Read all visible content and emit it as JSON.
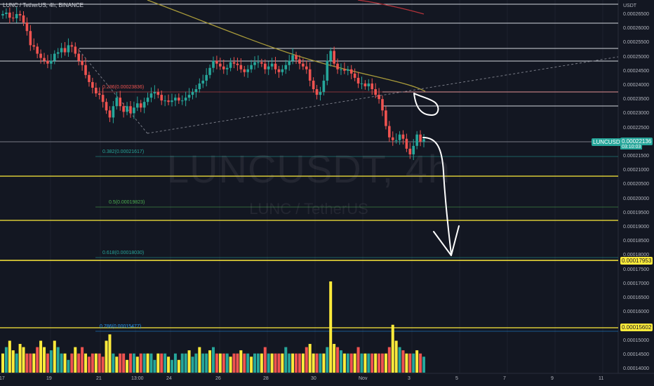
{
  "header": {
    "symbol_line": "LUNC / TetherUS, 4h, BINANCE"
  },
  "watermark": {
    "ticker": "LUNCUSDT, 4h",
    "pair": "LUNC / TetherUS"
  },
  "axis": {
    "currency": "USDT",
    "y_ticks": [
      "0.00026500",
      "0.00026000",
      "0.00025500",
      "0.00025000",
      "0.00024500",
      "0.00024000",
      "0.00023500",
      "0.00023000",
      "0.00022500",
      "0.00022000",
      "0.00021500",
      "0.00021000",
      "0.00020500",
      "0.00020000",
      "0.00019500",
      "0.00019000",
      "0.00018500",
      "0.00018000",
      "0.00017500",
      "0.00017000",
      "0.00016500",
      "0.00016000",
      "0.00015500",
      "0.00015000",
      "0.00014500",
      "0.00014000"
    ],
    "x_ticks": [
      "17",
      "19",
      "21",
      "13:00",
      "24",
      "26",
      "28",
      "30",
      "Nov",
      "3",
      "5",
      "7",
      "9",
      "11"
    ]
  },
  "tags": {
    "ticker": "LUNCUSDT",
    "last_price": "0.00022136",
    "countdown": "03:10:03",
    "level_1": "0.00017953",
    "level_2": "0.00015602"
  },
  "fib_labels": {
    "f236": "0.236(0.00023836)",
    "f382": "0.382(0.00021617)",
    "f50": "0.5(0.00019823)",
    "f618": "0.618(0.00018030)",
    "f786": "0.786(0.00015477)"
  },
  "colors": {
    "background": "#131722",
    "bull": "#26a69a",
    "bear": "#ef5350",
    "volume_yellow": "#ffeb3b",
    "ma_olive": "#a89a3a",
    "ma_red": "#b2333a",
    "hline": "#d1d4dc"
  },
  "chart_data": {
    "type": "candlestick",
    "symbol": "LUNCUSDT",
    "interval": "4h",
    "exchange": "BINANCE",
    "x_labels": [
      "17",
      "19",
      "21",
      "13:00",
      "24",
      "26",
      "28",
      "30",
      "Nov",
      "3",
      "5",
      "7",
      "9",
      "11"
    ],
    "ylim": [
      0.00014,
      0.000267
    ],
    "last_price": 0.00022136,
    "closes_approx": [
      0.0002655,
      0.000266,
      0.0002642,
      0.000264,
      0.0002655,
      0.000265,
      0.0002625,
      0.0002595,
      0.0002545,
      0.000254,
      0.0002515,
      0.00025,
      0.000249,
      0.000248,
      0.000249,
      0.0002515,
      0.000252,
      0.0002535,
      0.000252,
      0.0002545,
      0.000254,
      0.0002515,
      0.000249,
      0.0002475,
      0.000244,
      0.0002415,
      0.0002395,
      0.0002375,
      0.000237,
      0.0002345,
      0.0002315,
      0.000229,
      0.000233,
      0.000236,
      0.000233,
      0.000231,
      0.000233,
      0.0002305,
      0.0002325,
      0.000234,
      0.0002325,
      0.0002345,
      0.000236,
      0.0002375,
      0.000238,
      0.000237,
      0.000235,
      0.000235,
      0.0002345,
      0.000235,
      0.000236,
      0.000235,
      0.000235,
      0.000236,
      0.000237,
      0.000238,
      0.000239,
      0.000241,
      0.000242,
      0.000244,
      0.0002465,
      0.000249,
      0.000248,
      0.000247,
      0.000246,
      0.0002465,
      0.0002485,
      0.000248,
      0.0002475,
      0.000246,
      0.000245,
      0.000246,
      0.0002475,
      0.0002485,
      0.0002485,
      0.000248,
      0.000246,
      0.000247,
      0.000248,
      0.000246,
      0.000245,
      0.000246,
      0.0002475,
      0.000249,
      0.000251,
      0.0002495,
      0.000248,
      0.000247,
      0.000246,
      0.000242,
      0.000239,
      0.000237,
      0.000238,
      0.000242,
      0.000249,
      0.0002525,
      0.000248,
      0.000246,
      0.000246,
      0.0002455,
      0.000246,
      0.0002445,
      0.000243,
      0.000241,
      0.000241,
      0.00024,
      0.000241,
      0.000239,
      0.000237,
      0.0002355,
      0.0002315,
      0.000226,
      0.000222,
      0.000221,
      0.000221,
      0.000223,
      0.0002215,
      0.000218,
      0.000216,
      0.000219,
      0.000223,
      0.0002205,
      0.00022136
    ],
    "volume_relative": [
      0.3,
      0.4,
      0.5,
      0.35,
      0.3,
      0.45,
      0.4,
      0.3,
      0.3,
      0.3,
      0.4,
      0.5,
      0.4,
      0.3,
      0.35,
      0.5,
      0.4,
      0.3,
      0.3,
      0.2,
      0.3,
      0.4,
      0.3,
      0.4,
      0.3,
      0.25,
      0.3,
      0.3,
      0.3,
      0.25,
      0.5,
      0.6,
      0.3,
      0.25,
      0.3,
      0.3,
      0.2,
      0.3,
      0.3,
      0.25,
      0.3,
      0.3,
      0.3,
      0.3,
      0.2,
      0.3,
      0.3,
      0.3,
      0.25,
      0.2,
      0.3,
      0.2,
      0.3,
      0.3,
      0.35,
      0.25,
      0.3,
      0.4,
      0.3,
      0.3,
      0.35,
      0.4,
      0.3,
      0.3,
      0.3,
      0.3,
      0.25,
      0.3,
      0.3,
      0.35,
      0.3,
      0.3,
      0.25,
      0.3,
      0.3,
      0.3,
      0.4,
      0.3,
      0.3,
      0.3,
      0.3,
      0.3,
      0.4,
      0.3,
      0.3,
      0.3,
      0.3,
      0.3,
      0.4,
      0.45,
      0.3,
      0.3,
      0.3,
      0.3,
      0.4,
      1.0,
      0.45,
      0.4,
      0.35,
      0.3,
      0.3,
      0.3,
      0.3,
      0.4,
      0.3,
      0.3,
      0.3,
      0.3,
      0.3,
      0.3,
      0.3,
      0.3,
      0.4,
      0.75,
      0.5,
      0.4,
      0.35,
      0.3,
      0.3,
      0.3,
      0.35,
      0.3,
      0.25
    ],
    "fibonacci": [
      {
        "ratio": 0.236,
        "price": 0.00023836
      },
      {
        "ratio": 0.382,
        "price": 0.00021617
      },
      {
        "ratio": 0.5,
        "price": 0.00019823
      },
      {
        "ratio": 0.618,
        "price": 0.0001803
      },
      {
        "ratio": 0.786,
        "price": 0.00015477
      }
    ],
    "horizontal_levels": [
      0.0002657,
      0.0002625,
      0.000254,
      0.000249,
      0.0002377,
      0.0002335,
      0.0002225,
      0.0002097,
      0.0001934,
      0.00017953,
      0.00015602
    ],
    "grid": false
  }
}
